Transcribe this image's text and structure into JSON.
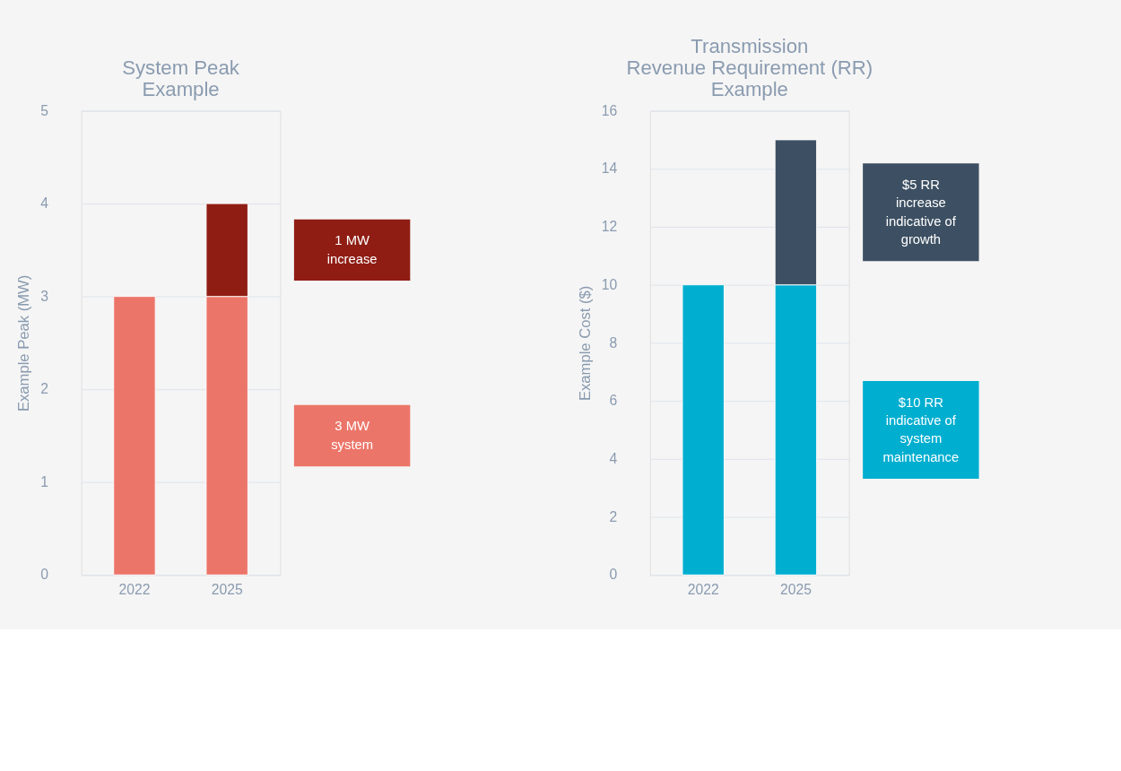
{
  "chart_data": [
    {
      "type": "bar",
      "title": "System Peak\nExample",
      "ylabel": "Example Peak (MW)",
      "categories": [
        "2022",
        "2025"
      ],
      "stacked": true,
      "grid": "y",
      "ylim": [
        0,
        5
      ],
      "yticks": [
        0,
        1,
        2,
        3,
        4,
        5
      ],
      "series": [
        {
          "color": "#ec7569",
          "values": [
            3,
            3
          ]
        },
        {
          "color": "#8f1d14",
          "values": [
            null,
            1
          ]
        }
      ],
      "annotations": [
        "3 MW\nsystem",
        "1 MW\nincrease"
      ]
    },
    {
      "type": "bar",
      "title": "Transmission\nRevenue Requirement (RR)\nExample",
      "ylabel": "Example Cost ($)",
      "categories": [
        "2022",
        "2025"
      ],
      "stacked": true,
      "grid": "y",
      "ylim": [
        0,
        16
      ],
      "yticks": [
        0,
        2,
        4,
        6,
        8,
        10,
        12,
        14,
        16
      ],
      "series": [
        {
          "color": "#00aed0",
          "values": [
            10,
            10
          ]
        },
        {
          "color": "#3d5063",
          "values": [
            null,
            5
          ]
        }
      ],
      "annotations": [
        "$10 RR\nindicative of\nsystem\nmaintenance",
        "$5 RR\nincrease\nindicative of\ngrowth"
      ]
    }
  ]
}
